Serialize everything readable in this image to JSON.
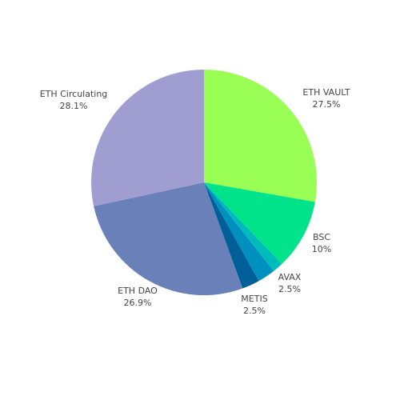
{
  "chart_data": {
    "type": "pie",
    "direction": "clockwise",
    "start": "top",
    "slices": [
      {
        "label": "ETH VAULT",
        "value": 27.5,
        "percent_label": "27.5%",
        "color": "#99ff55"
      },
      {
        "label": "BSC",
        "value": 10,
        "percent_label": "10%",
        "color": "#00e38a"
      },
      {
        "label": "",
        "value": 1.5,
        "percent_label": "",
        "color": "#00bbbb"
      },
      {
        "label": "AVAX",
        "value": 2.5,
        "percent_label": "2.5%",
        "color": "#0090c0"
      },
      {
        "label": "METIS",
        "value": 2.5,
        "percent_label": "2.5%",
        "color": "#005f99"
      },
      {
        "label": "ETH DAO",
        "value": 26.9,
        "percent_label": "26.9%",
        "color": "#6a80b9"
      },
      {
        "label": "ETH Circulating",
        "value": 28.1,
        "percent_label": "28.1%",
        "color": "#a09ed0"
      }
    ]
  }
}
